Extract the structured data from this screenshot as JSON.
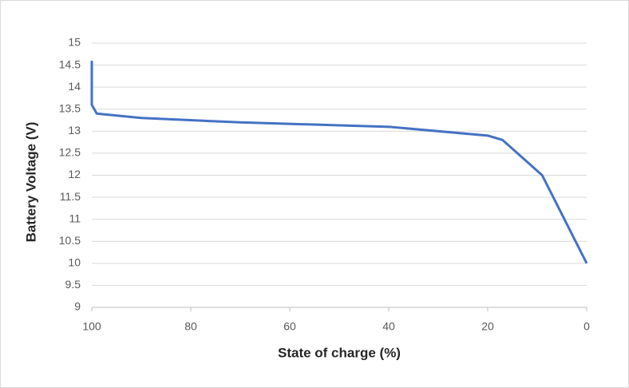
{
  "chart_data": {
    "type": "line",
    "x_label": "State of charge (%)",
    "y_label": "Battery Voltage (V)",
    "x": [
      100,
      100,
      99,
      90,
      70,
      40,
      20,
      17,
      9,
      0
    ],
    "values": [
      14.6,
      13.6,
      13.4,
      13.3,
      13.2,
      13.1,
      12.9,
      12.8,
      12.0,
      10.0
    ],
    "color": "#4472c4",
    "xlim": [
      100,
      0
    ],
    "xticks": [
      100,
      80,
      60,
      40,
      20,
      0
    ],
    "ylim": [
      9,
      15
    ],
    "yticks": [
      9,
      9.5,
      10,
      10.5,
      11,
      11.5,
      12,
      12.5,
      13,
      13.5,
      14,
      14.5,
      15
    ],
    "grid": true
  }
}
